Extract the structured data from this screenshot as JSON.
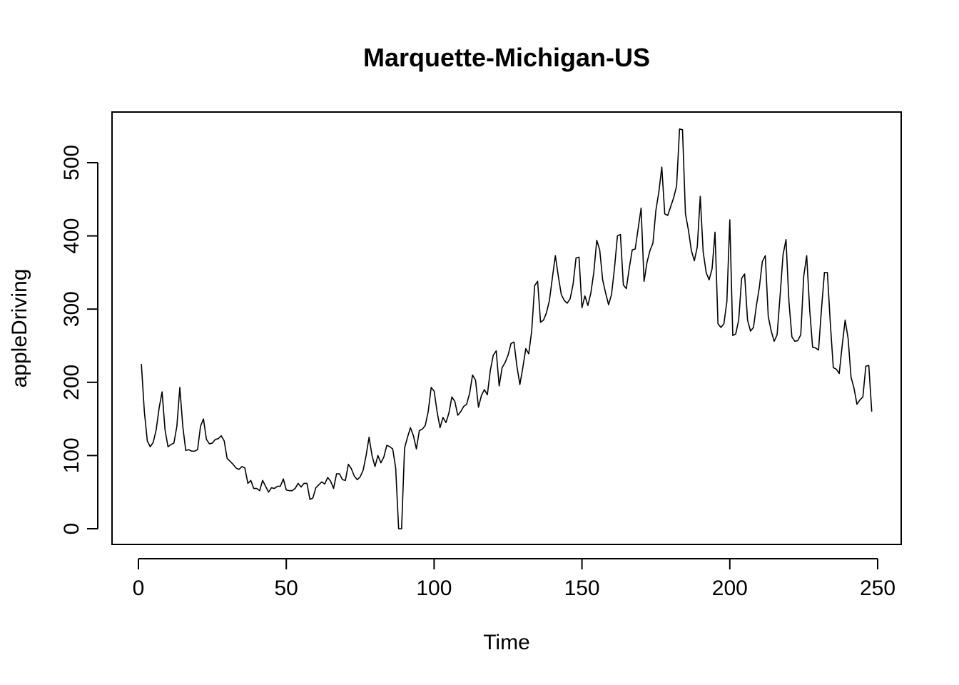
{
  "chart_data": {
    "type": "line",
    "title": "Marquette-Michigan-US",
    "xlabel": "Time",
    "ylabel": "appleDriving",
    "xlim": [
      0,
      250
    ],
    "ylim": [
      0,
      550
    ],
    "xticks": [
      0,
      50,
      100,
      150,
      200,
      250
    ],
    "yticks": [
      0,
      100,
      200,
      300,
      400,
      500
    ],
    "grid": false,
    "series": [
      {
        "color": "#000000",
        "x": [
          1,
          2,
          3,
          4,
          5,
          6,
          7,
          8,
          9,
          10,
          11,
          12,
          13,
          14,
          15,
          16,
          17,
          18,
          19,
          20,
          21,
          22,
          23,
          24,
          25,
          26,
          27,
          28,
          29,
          30,
          31,
          32,
          33,
          34,
          35,
          36,
          37,
          38,
          39,
          40,
          41,
          42,
          43,
          44,
          45,
          46,
          47,
          48,
          49,
          50,
          51,
          52,
          53,
          54,
          55,
          56,
          57,
          58,
          59,
          60,
          61,
          62,
          63,
          64,
          65,
          66,
          67,
          68,
          69,
          70,
          71,
          72,
          73,
          74,
          75,
          76,
          77,
          78,
          79,
          80,
          81,
          82,
          83,
          84,
          85,
          86,
          87,
          88,
          89,
          90,
          91,
          92,
          93,
          94,
          95,
          96,
          97,
          98,
          99,
          100,
          101,
          102,
          103,
          104,
          105,
          106,
          107,
          108,
          109,
          110,
          111,
          112,
          113,
          114,
          115,
          116,
          117,
          118,
          119,
          120,
          121,
          122,
          123,
          124,
          125,
          126,
          127,
          128,
          129,
          130,
          131,
          132,
          133,
          134,
          135,
          136,
          137,
          138,
          139,
          140,
          141,
          142,
          143,
          144,
          145,
          146,
          147,
          148,
          149,
          150,
          151,
          152,
          153,
          154,
          155,
          156,
          157,
          158,
          159,
          160,
          161,
          162,
          163,
          164,
          165,
          166,
          167,
          168,
          169,
          170,
          171,
          172,
          173,
          174,
          175,
          176,
          177,
          178,
          179,
          180,
          181,
          182,
          183,
          184,
          185,
          186,
          187,
          188,
          189,
          190,
          191,
          192,
          193,
          194,
          195,
          196,
          197,
          198,
          199,
          200,
          201,
          202,
          203,
          204,
          205,
          206,
          207,
          208,
          209,
          210,
          211,
          212,
          213,
          214,
          215,
          216,
          217,
          218,
          219,
          220,
          221,
          222,
          223,
          224,
          225,
          226,
          227,
          228,
          229,
          230,
          231,
          232,
          233,
          234,
          235,
          236,
          237,
          238,
          239,
          240,
          241,
          242,
          243,
          244,
          245,
          246,
          247,
          248
        ],
        "values": [
          225,
          160,
          120,
          112,
          118,
          135,
          165,
          187,
          135,
          112,
          115,
          117,
          140,
          193,
          140,
          107,
          108,
          106,
          106,
          108,
          140,
          150,
          122,
          116,
          117,
          122,
          123,
          127,
          120,
          96,
          92,
          88,
          83,
          81,
          85,
          83,
          62,
          66,
          55,
          55,
          52,
          66,
          58,
          50,
          56,
          55,
          58,
          58,
          68,
          53,
          52,
          52,
          55,
          62,
          57,
          62,
          62,
          40,
          42,
          56,
          60,
          64,
          61,
          70,
          65,
          55,
          75,
          75,
          67,
          66,
          88,
          82,
          72,
          67,
          71,
          80,
          100,
          125,
          100,
          85,
          100,
          90,
          98,
          114,
          112,
          109,
          83,
          0,
          0,
          110,
          125,
          138,
          127,
          109,
          134,
          136,
          141,
          160,
          193,
          188,
          160,
          138,
          152,
          145,
          158,
          180,
          174,
          155,
          160,
          167,
          170,
          185,
          210,
          203,
          166,
          182,
          190,
          183,
          216,
          237,
          243,
          195,
          220,
          227,
          237,
          253,
          255,
          222,
          197,
          220,
          246,
          239,
          270,
          332,
          338,
          282,
          285,
          295,
          312,
          343,
          373,
          345,
          320,
          312,
          308,
          314,
          334,
          370,
          371,
          302,
          318,
          305,
          322,
          350,
          394,
          381,
          340,
          322,
          306,
          320,
          356,
          400,
          402,
          333,
          328,
          356,
          381,
          382,
          410,
          438,
          338,
          364,
          380,
          390,
          435,
          460,
          494,
          430,
          428,
          440,
          452,
          468,
          546,
          545,
          430,
          408,
          380,
          366,
          385,
          454,
          378,
          350,
          340,
          355,
          405,
          280,
          275,
          280,
          310,
          422,
          264,
          266,
          285,
          342,
          348,
          285,
          270,
          275,
          305,
          330,
          365,
          373,
          290,
          270,
          256,
          265,
          318,
          374,
          395,
          310,
          262,
          256,
          257,
          265,
          345,
          373,
          300,
          248,
          247,
          244,
          300,
          350,
          350,
          280,
          220,
          218,
          212,
          250,
          285,
          260,
          207,
          192,
          170,
          176,
          180,
          222,
          223,
          160
        ]
      }
    ]
  }
}
